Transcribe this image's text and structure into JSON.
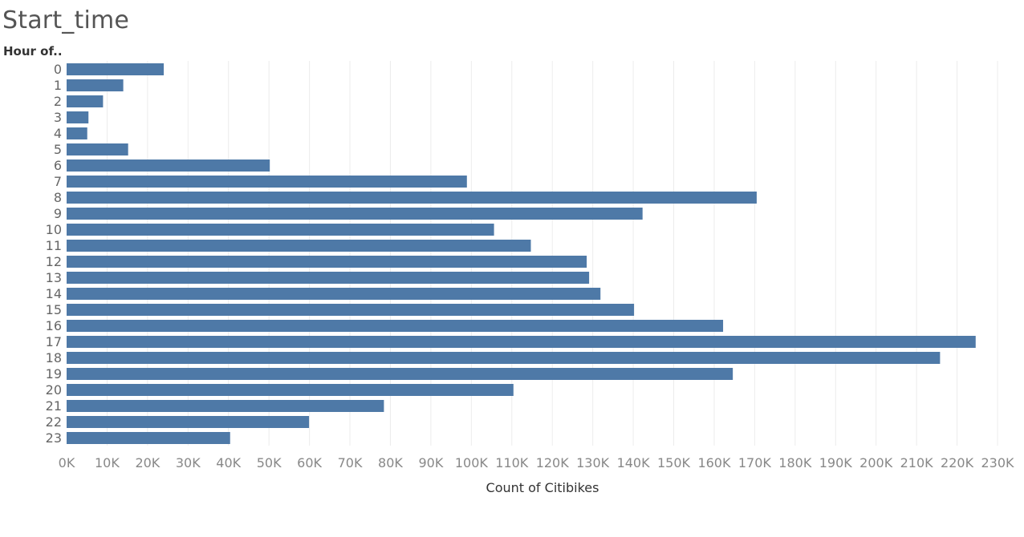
{
  "title": "Start_time",
  "row_header": "Hour of..",
  "chart_data": {
    "type": "bar",
    "orientation": "horizontal",
    "categories": [
      "0",
      "1",
      "2",
      "3",
      "4",
      "5",
      "6",
      "7",
      "8",
      "9",
      "10",
      "11",
      "12",
      "13",
      "14",
      "15",
      "16",
      "17",
      "18",
      "19",
      "20",
      "21",
      "22",
      "23"
    ],
    "values": [
      24000,
      14000,
      9000,
      5400,
      5100,
      15200,
      50200,
      98900,
      170500,
      142300,
      105600,
      114700,
      128500,
      129100,
      131900,
      140200,
      162200,
      224600,
      215800,
      164600,
      110400,
      78400,
      59900,
      40400
    ],
    "xlabel": "Count of Citibikes",
    "ylabel": "Hour of..",
    "xlim": [
      0,
      230000
    ],
    "xticks": [
      "0K",
      "10K",
      "20K",
      "30K",
      "40K",
      "50K",
      "60K",
      "70K",
      "80K",
      "90K",
      "100K",
      "110K",
      "120K",
      "130K",
      "140K",
      "150K",
      "160K",
      "170K",
      "180K",
      "190K",
      "200K",
      "210K",
      "220K",
      "230K"
    ],
    "grid": true,
    "bar_color": "#4e79a7"
  }
}
